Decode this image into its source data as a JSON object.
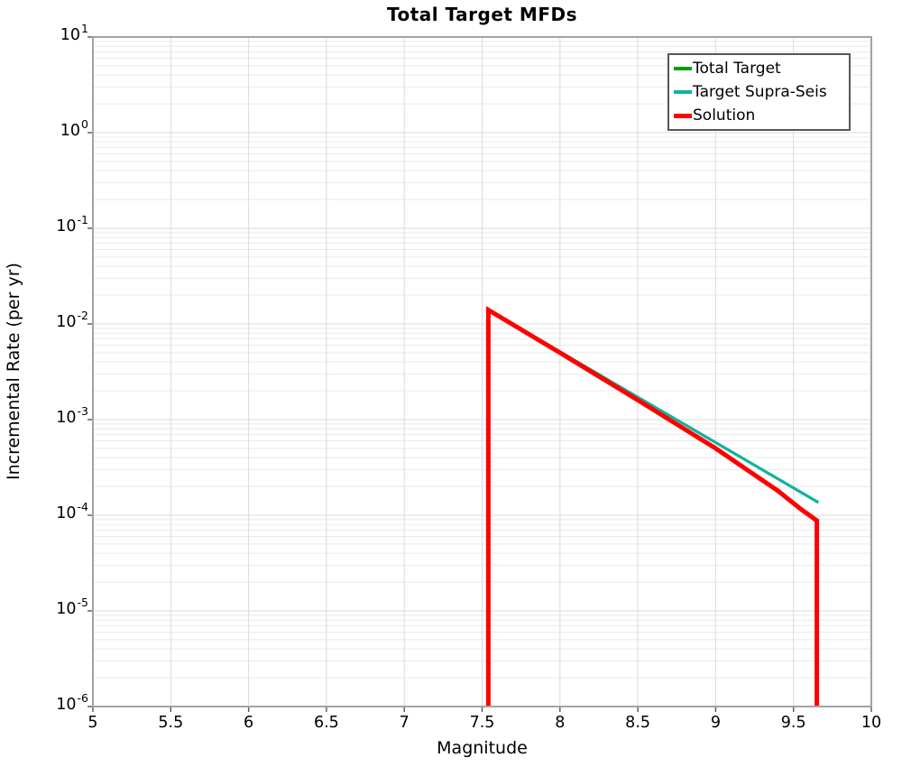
{
  "title": "Total Target MFDs",
  "axes": {
    "xlabel": "Magnitude",
    "ylabel": "Incremental Rate (per yr)",
    "x_tick_labels": [
      "5",
      "5.5",
      "6",
      "6.5",
      "7",
      "7.5",
      "8",
      "8.5",
      "9",
      "9.5",
      "10"
    ],
    "y_tick_base": "10",
    "y_tick_exponents": [
      "1",
      "0",
      "-1",
      "-2",
      "-3",
      "-4",
      "-5",
      "-6"
    ]
  },
  "legend": {
    "items": [
      {
        "label": "Total Target",
        "color": "#00a000",
        "thickness": 4
      },
      {
        "label": "Target Supra-Seis",
        "color": "#10b2a4",
        "thickness": 4
      },
      {
        "label": "Solution",
        "color": "#ff0000",
        "thickness": 5
      }
    ]
  },
  "chart_data": {
    "type": "line",
    "title": "Total Target MFDs",
    "xlabel": "Magnitude",
    "ylabel": "Incremental Rate (per yr)",
    "xlim": [
      5,
      10
    ],
    "ylim": [
      1e-06,
      10
    ],
    "yscale": "log",
    "grid": true,
    "legend_position": "upper right",
    "series": [
      {
        "name": "Total Target",
        "color": "#00a000",
        "width": 3,
        "points": [
          [
            7.54,
            0.014
          ],
          [
            9.66,
            0.000136
          ]
        ]
      },
      {
        "name": "Target Supra-Seis",
        "color": "#10b2a4",
        "width": 3,
        "points": [
          [
            7.54,
            0.014
          ],
          [
            9.66,
            0.000136
          ]
        ]
      },
      {
        "name": "Solution",
        "color": "#ff0000",
        "width": 5,
        "points": [
          [
            7.54,
            1e-06
          ],
          [
            7.54,
            0.014
          ],
          [
            8.0,
            0.005
          ],
          [
            8.5,
            0.0016
          ],
          [
            9.0,
            0.0005
          ],
          [
            9.2,
            0.0003
          ],
          [
            9.4,
            0.00018
          ],
          [
            9.55,
            0.000115
          ],
          [
            9.65,
            8.8e-05
          ],
          [
            9.65,
            1e-06
          ]
        ]
      }
    ]
  }
}
